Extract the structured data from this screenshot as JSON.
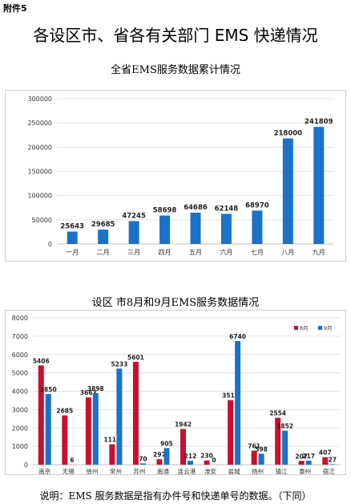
{
  "attachment_label": "附件5",
  "page_title": "各设区市、省各有关部门 EMS 快递情况",
  "footnote": "说明：EMS 服务数据是指有办件号和快递单号的数据。（下同）",
  "chart_data": [
    {
      "type": "bar",
      "title": "全省EMS服务数据累计情况",
      "categories": [
        "一月",
        "二月",
        "三月",
        "四月",
        "五月",
        "六月",
        "七月",
        "八月",
        "九月"
      ],
      "values": [
        25643,
        29685,
        47245,
        58698,
        64686,
        62148,
        68970,
        218000,
        241809
      ],
      "ylim": [
        0,
        300000
      ],
      "yticks": [
        0,
        50000,
        100000,
        150000,
        200000,
        250000,
        300000
      ],
      "grid": true,
      "color": "#1a73c8"
    },
    {
      "type": "bar",
      "title": "设区 市8月和9月EMS服务数据情况",
      "categories": [
        "南京",
        "无锡",
        "徐州",
        "常州",
        "苏州",
        "南通",
        "连云港",
        "淮安",
        "盐城",
        "扬州",
        "镇江",
        "泰州",
        "宿迁"
      ],
      "series": [
        {
          "name": "8月",
          "color": "#c8102e",
          "values": [
            5406,
            2685,
            3663,
            1112,
            5601,
            297,
            1942,
            230,
            3518,
            761,
            2554,
            207,
            407
          ]
        },
        {
          "name": "9月",
          "color": "#1a73c8",
          "values": [
            3850,
            6,
            3898,
            5233,
            70,
            905,
            212,
            0,
            6740,
            598,
            1852,
            217,
            27
          ]
        }
      ],
      "ylim": [
        0,
        8000
      ],
      "yticks": [
        0,
        1000,
        2000,
        3000,
        4000,
        5000,
        6000,
        7000,
        8000
      ],
      "grid": true,
      "legend_position": "top-right"
    }
  ]
}
